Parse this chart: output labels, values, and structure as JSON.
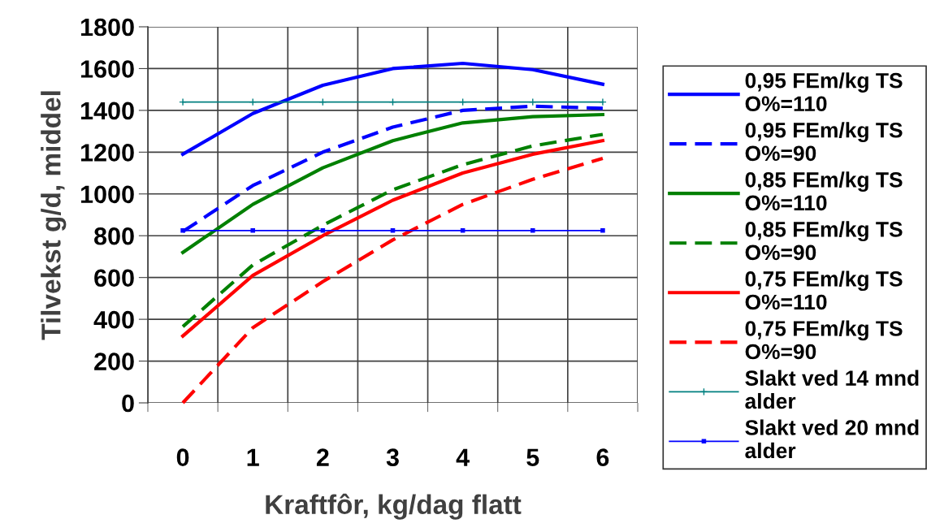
{
  "chart_data": {
    "type": "line",
    "xlabel": "Kraftfôr, kg/dag flatt",
    "ylabel": "Tilvekst g/d, middel",
    "categories": [
      "0",
      "1",
      "2",
      "3",
      "4",
      "5",
      "6"
    ],
    "ylim": [
      0,
      1800
    ],
    "yticks": [
      0,
      200,
      400,
      600,
      800,
      1000,
      1200,
      1400,
      1600,
      1800
    ],
    "grid": true,
    "legend": "right",
    "series": [
      {
        "name": "0,95 FEm/kg TS\nO%=110",
        "color": "#0000ff",
        "line_style": "solid",
        "marker": "none",
        "values": [
          1190,
          1385,
          1520,
          1600,
          1625,
          1595,
          1525
        ]
      },
      {
        "name": "0,95 FEm/kg TS\nO%=90",
        "color": "#0000ff",
        "line_style": "dashed",
        "marker": "none",
        "values": [
          820,
          1040,
          1200,
          1320,
          1400,
          1420,
          1410
        ]
      },
      {
        "name": "0,85 FEm/kg TS\nO%=110",
        "color": "#008000",
        "line_style": "solid",
        "marker": "none",
        "values": [
          720,
          950,
          1125,
          1255,
          1340,
          1370,
          1380
        ]
      },
      {
        "name": "0,85 FEm/kg TS\nO%=90",
        "color": "#008000",
        "line_style": "dashed",
        "marker": "none",
        "values": [
          365,
          660,
          850,
          1020,
          1140,
          1230,
          1285
        ]
      },
      {
        "name": "0,75 FEm/kg TS\nO%=110",
        "color": "#ff0000",
        "line_style": "solid",
        "marker": "none",
        "values": [
          320,
          610,
          800,
          970,
          1100,
          1190,
          1255
        ]
      },
      {
        "name": "0,75 FEm/kg TS\nO%=90",
        "color": "#ff0000",
        "line_style": "dashed",
        "marker": "none",
        "values": [
          0,
          360,
          580,
          780,
          950,
          1070,
          1170
        ]
      },
      {
        "name": "Slakt ved 14 mnd\nalder",
        "color": "#008080",
        "line_style": "solid",
        "marker": "cross",
        "values": [
          1440,
          1440,
          1440,
          1440,
          1440,
          1440,
          1440
        ]
      },
      {
        "name": "Slakt ved 20 mnd\nalder",
        "color": "#0000ff",
        "line_style": "solid",
        "marker": "square",
        "values": [
          825,
          825,
          825,
          825,
          825,
          825,
          825
        ]
      }
    ]
  }
}
